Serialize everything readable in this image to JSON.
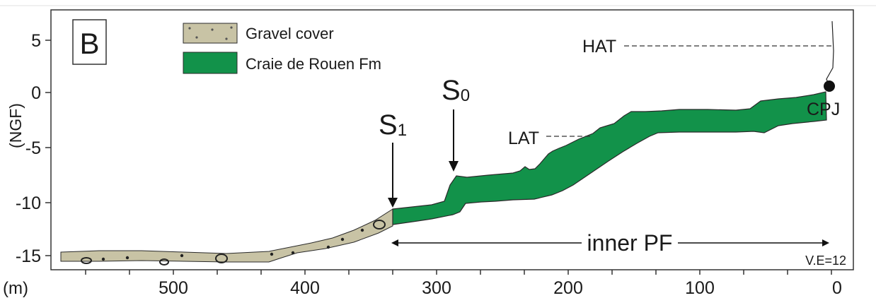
{
  "panel_label": "B",
  "legend": {
    "items": [
      {
        "label": "Gravel cover",
        "color": "#c8c3a5"
      },
      {
        "label": "Craie de Rouen Fm",
        "color": "#12924a"
      }
    ]
  },
  "axes": {
    "y_label": "(NGF)",
    "x_label": "(m)",
    "y_ticks": [
      "5",
      "0",
      "-5",
      "-10",
      "-15"
    ],
    "x_ticks": [
      "500",
      "400",
      "300",
      "200",
      "100",
      "0"
    ]
  },
  "annotations": {
    "s1": "S",
    "s1_sub": "1",
    "s0": "S",
    "s0_sub": "0",
    "hat": "HAT",
    "lat": "LAT",
    "cpj": "CPJ",
    "inner_pf": "inner PF",
    "ve": "V.E=12"
  },
  "colors": {
    "chalk": "#12924a",
    "gravel": "#c8c3a5",
    "outline": "#2a2a2a"
  }
}
